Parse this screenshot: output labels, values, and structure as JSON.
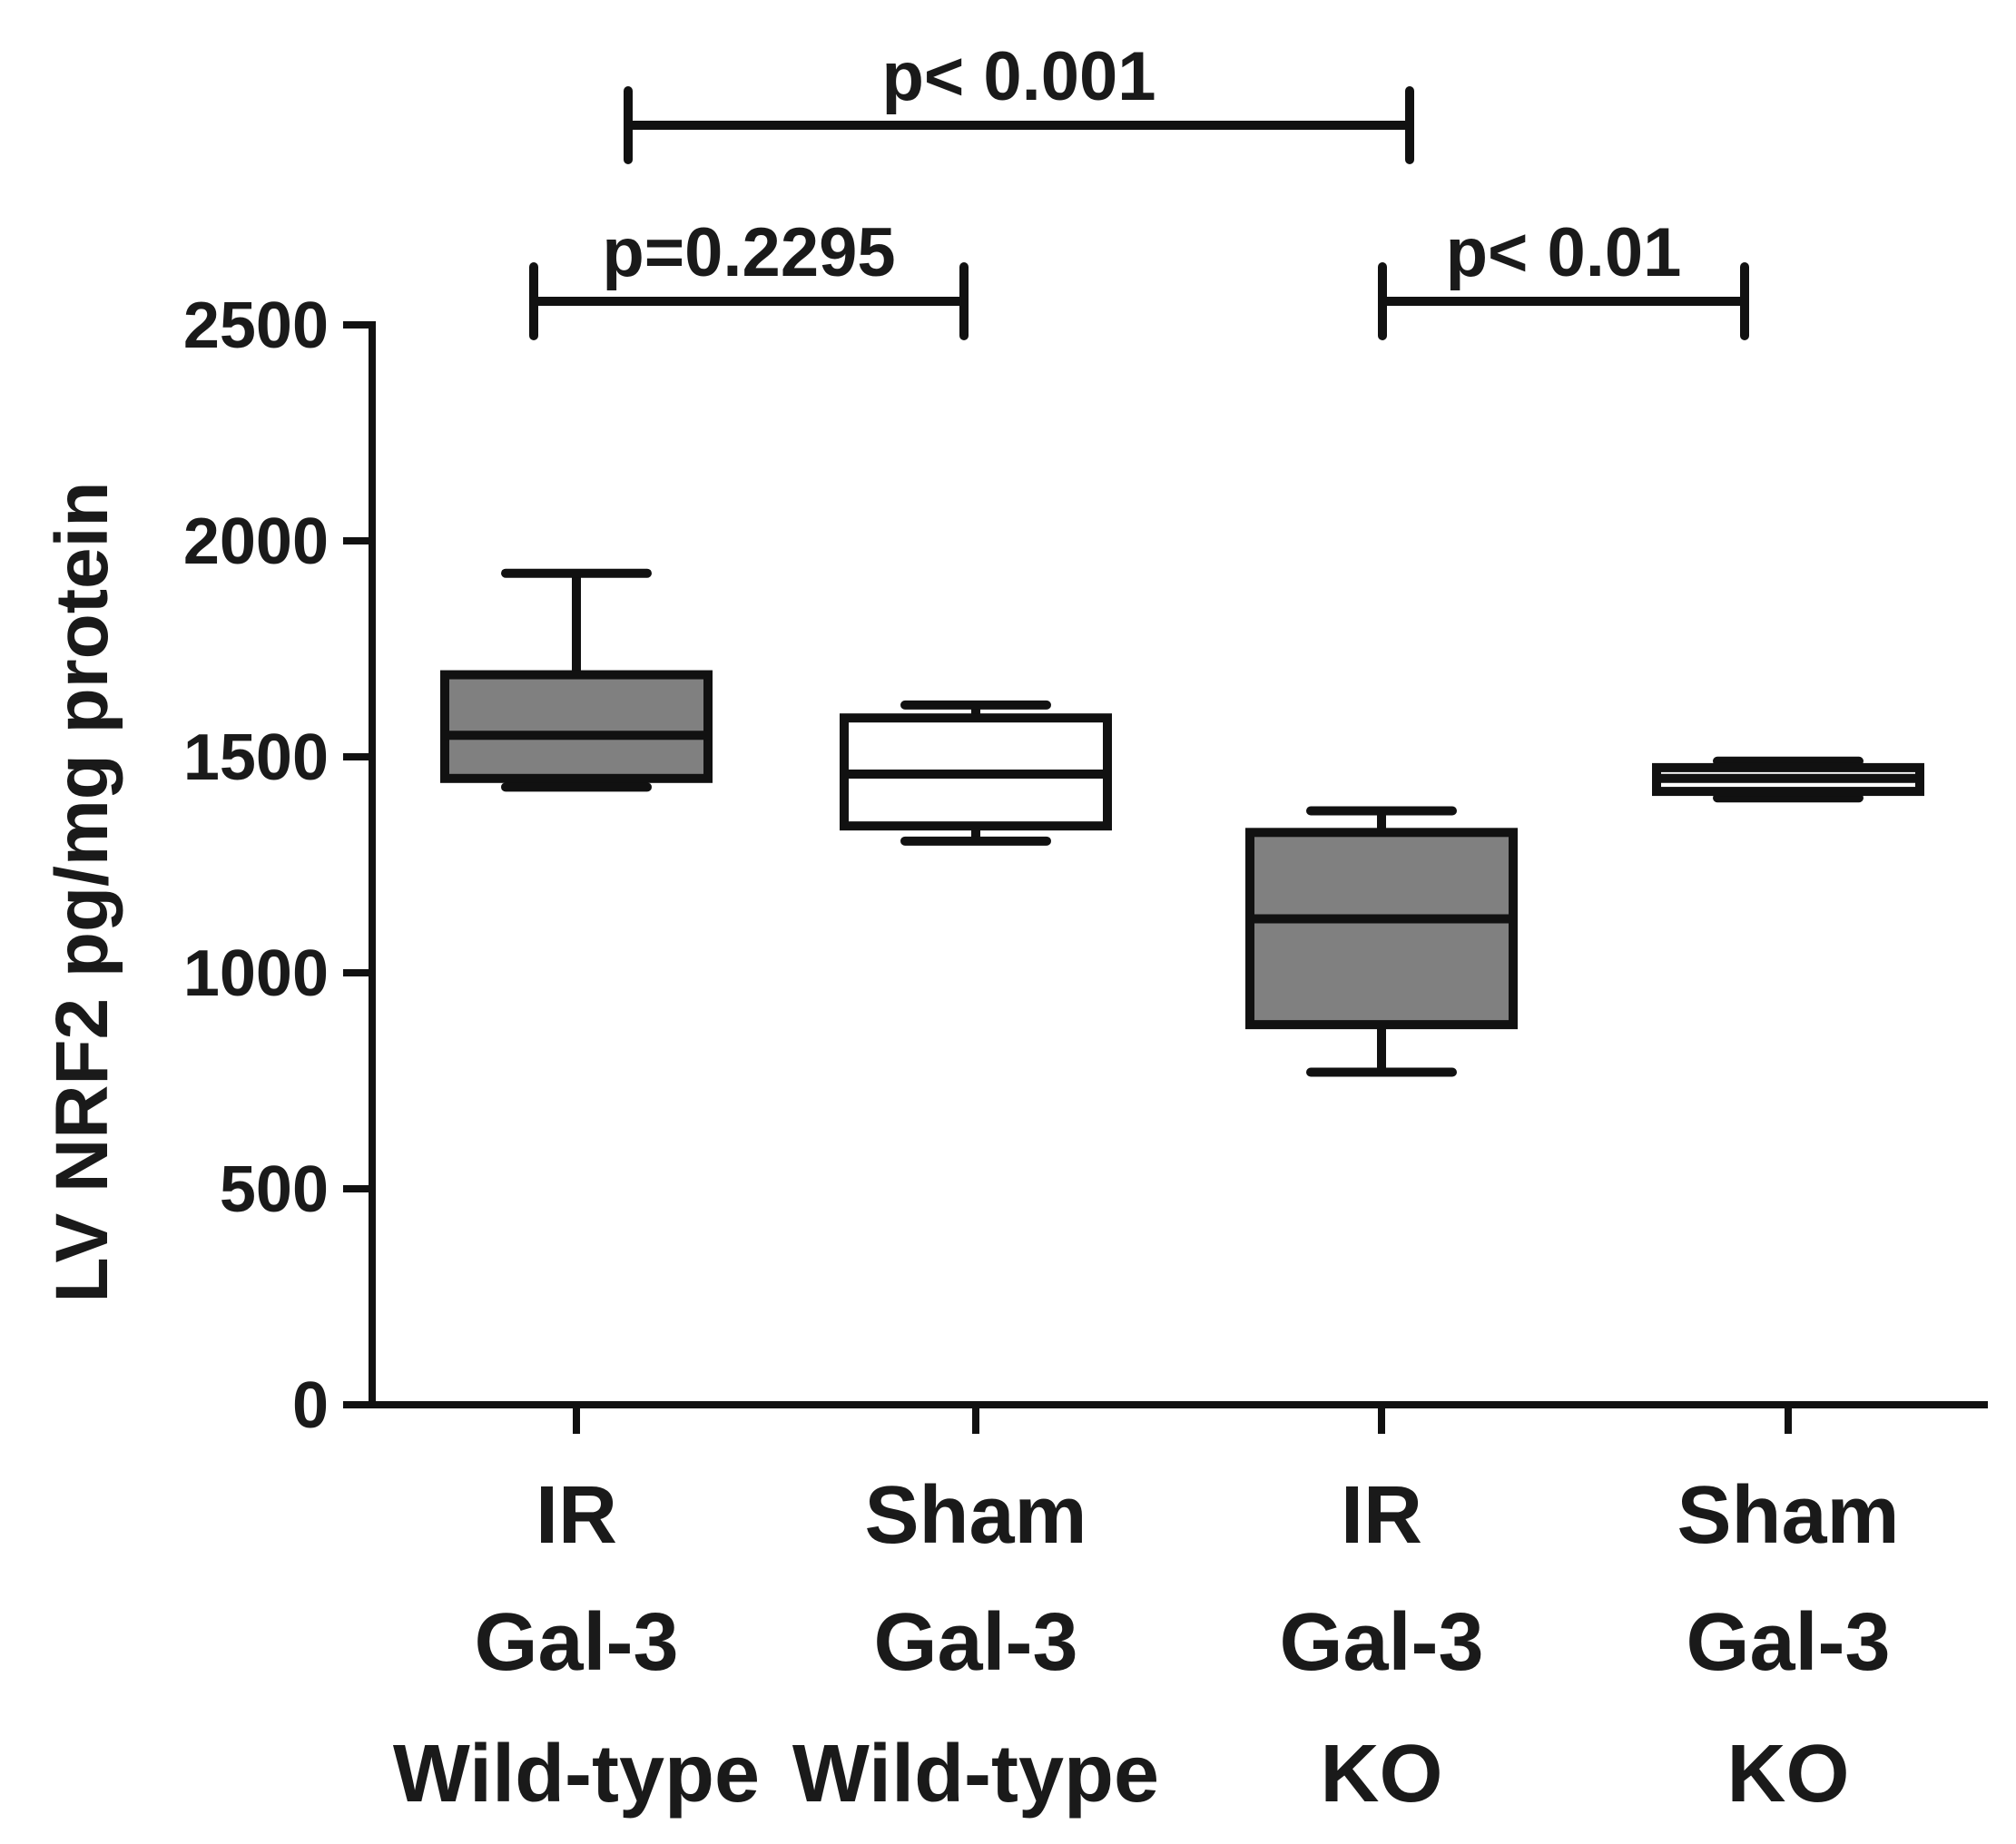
{
  "chart_data": {
    "type": "boxplot",
    "ylabel": "LV NRF2 pg/mg protein",
    "xlabel": "",
    "ylim": [
      0,
      2500
    ],
    "yticks": [
      0,
      500,
      1000,
      1500,
      2000,
      2500
    ],
    "grid": false,
    "categories": [
      {
        "lines": [
          "IR",
          "Gal-3",
          "Wild-type"
        ]
      },
      {
        "lines": [
          "Sham",
          "Gal-3",
          "Wild-type"
        ]
      },
      {
        "lines": [
          "IR",
          "Gal-3",
          "KO"
        ]
      },
      {
        "lines": [
          "Sham",
          "Gal-3",
          "KO"
        ]
      }
    ],
    "boxes": [
      {
        "min": 1430,
        "q1": 1450,
        "median": 1550,
        "q3": 1690,
        "max": 1925,
        "fill": "#808080"
      },
      {
        "min": 1305,
        "q1": 1340,
        "median": 1460,
        "q3": 1590,
        "max": 1620,
        "fill": "#ffffff"
      },
      {
        "min": 770,
        "q1": 880,
        "median": 1125,
        "q3": 1325,
        "max": 1375,
        "fill": "#808080"
      },
      {
        "min": 1405,
        "q1": 1420,
        "median": 1450,
        "q3": 1475,
        "max": 1490,
        "fill": "#ffffff"
      }
    ],
    "comparisons": [
      {
        "from": 0,
        "to": 2,
        "label": "p< 0.001",
        "level": "top"
      },
      {
        "from": 0,
        "to": 1,
        "label": "p=0.2295",
        "level": "low"
      },
      {
        "from": 2,
        "to": 3,
        "label": "p< 0.01",
        "level": "low"
      }
    ]
  },
  "colors": {
    "axis": "#111111",
    "ir_fill": "#808080",
    "sham_fill": "#ffffff"
  }
}
